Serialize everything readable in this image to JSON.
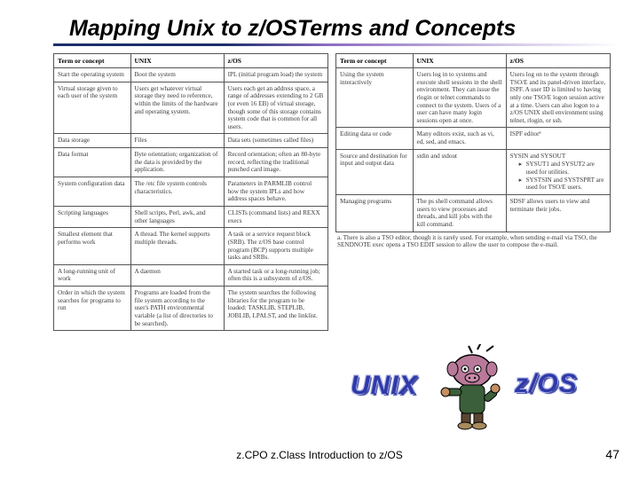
{
  "title": "Mapping Unix to z/OSTerms and Concepts",
  "headers": {
    "term": "Term or concept",
    "unix": "UNIX",
    "zos": "z/OS"
  },
  "tableLeft": [
    {
      "term": "Start the operating system",
      "unix": "Boot the system",
      "zos": "IPL (initial program load) the system"
    },
    {
      "term": "Virtual storage given to each user of the system",
      "unix": "Users get whatever virtual storage they need to reference, within the limits of the hardware and operating system.",
      "zos": "Users each get an address space, a range of addresses extending to 2 GB (or even 16 EB) of virtual storage, though some of this storage contains system code that is common for all users."
    },
    {
      "term": "Data storage",
      "unix": "Files",
      "zos": "Data sets (sometimes called files)"
    },
    {
      "term": "Data format",
      "unix": "Byte orientation; organization of the data is provided by the application.",
      "zos": "Record orientation; often an 80-byte record, reflecting the traditional punched card image."
    },
    {
      "term": "System configuration data",
      "unix": "The /etc file system controls characteristics.",
      "zos": "Parameters in PARMLIB control how the system IPLs and how address spaces behave."
    },
    {
      "term": "Scripting languages",
      "unix": "Shell scripts, Perl, awk, and other languages",
      "zos": "CLISTs (command lists) and REXX execs"
    },
    {
      "term": "Smallest element that performs work",
      "unix": "A thread. The kernel supports multiple threads.",
      "zos": "A task or a service request block (SRB). The z/OS base control program (BCP) supports multiple tasks and SRBs."
    },
    {
      "term": "A long-running unit of work",
      "unix": "A daemon",
      "zos": "A started task or a long-running job; often this is a subsystem of z/OS."
    },
    {
      "term": "Order in which the system searches for programs to run",
      "unix": "Programs are loaded from the file system according to the user's PATH environmental variable (a list of directories to be searched).",
      "zos": "The system searches the following libraries for the program to be loaded: TASKLIB, STEPLIB, JOBLIB, LPALST, and the linklist."
    }
  ],
  "tableRight": [
    {
      "term": "Using the system interactively",
      "unix": "Users log in to systems and execute shell sessions in the shell environment. They can issue the rlogin or telnet commands to connect to the system. Users of a user can have many login sessions open at once.",
      "zos": "Users log on to the system through TSO/E and its panel-driven interface, ISPF. A user ID is limited to having only one TSO/E logon session active at a time.\n\nUsers can also logon to a z/OS UNIX shell environment using telnet, rlogin, or ssh."
    },
    {
      "term": "Editing data or code",
      "unix": "Many editors exist, such as vi, ed, sed, and emacs.",
      "zos": "ISPF editorª"
    },
    {
      "term": "Source and destination for input and output data",
      "unix": "stdin and stdout",
      "zos_list": [
        "SYSIN and SYSOUT",
        "SYSUT1 and SYSUT2 are used for utilities.",
        "SYSTSIN and SYSTSPRT are used for TSO/E users."
      ]
    },
    {
      "term": "Managing programs",
      "unix": "The ps shell command allows users to view processes and threads, and kill jobs with the kill command.",
      "zos": "SDSF allows users to view and terminate their jobs."
    }
  ],
  "footnote": "a. There is also a TSO editor, though it is rarely used. For example, when sending e-mail via TSO, the SENDNOTE exec opens a TSO EDIT session to allow the user to compose the e-mail.",
  "labels": {
    "unix": "UNIX",
    "zos": "z/OS"
  },
  "footer": "z.CPO z.Class  Introduction to z/OS",
  "page": "47",
  "colors": {
    "title": "#000000",
    "accent": "#2e3aa8",
    "underline_start": "#1b2f6b",
    "underline_mid": "#8a6cc0"
  }
}
